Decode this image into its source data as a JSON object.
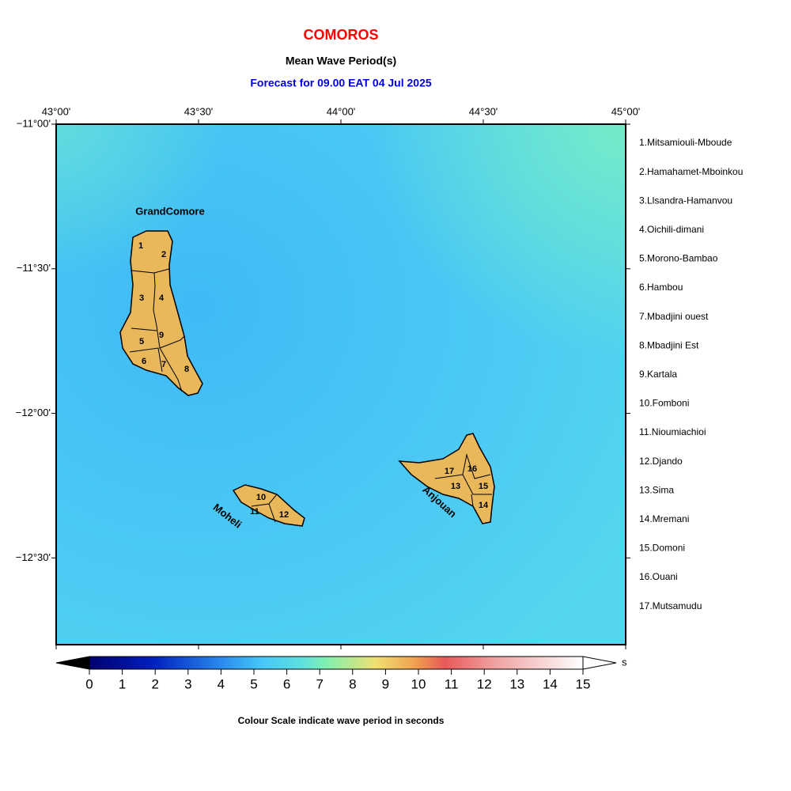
{
  "header": {
    "title": "COMOROS",
    "subtitle": "Mean Wave Period(s)",
    "forecast": "Forecast for  09.00 EAT 04 Jul 2025"
  },
  "map": {
    "xlim": [
      43,
      45
    ],
    "ylim": [
      -12.8,
      -11
    ],
    "lon_ticks": [
      {
        "value": 43,
        "label": "43°00'"
      },
      {
        "value": 43.5,
        "label": "43°30'"
      },
      {
        "value": 44,
        "label": "44°00'"
      },
      {
        "value": 44.5,
        "label": "44°30'"
      },
      {
        "value": 45,
        "label": "45°00'"
      }
    ],
    "lat_ticks": [
      {
        "value": -11,
        "label": "−11°00'"
      },
      {
        "value": -11.5,
        "label": "−11°30'"
      },
      {
        "value": -12,
        "label": "−12°00'"
      },
      {
        "value": -12.5,
        "label": "−12°30'"
      }
    ],
    "islands": [
      "GrandComore",
      "Moheli",
      "Anjouan"
    ],
    "region_numbers": [
      "1",
      "2",
      "3",
      "4",
      "5",
      "6",
      "7",
      "8",
      "9",
      "10",
      "11",
      "12",
      "13",
      "14",
      "15",
      "16",
      "17"
    ]
  },
  "legend": [
    "1.Mitsamiouli-Mboude",
    "2.Hamahamet-Mboinkou",
    "3.Llsandra-Hamanvou",
    "4.Oichili-dimani",
    "5.Morono-Bambao",
    "6.Hambou",
    "7.Mbadjini ouest",
    "8.Mbadjini Est",
    "9.Kartala",
    "10.Fomboni",
    "11.Nioumiachioi",
    "12.Djando",
    "13.Sima",
    "14.Mremani",
    "15.Domoni",
    "16.Ouani",
    "17.Mutsamudu"
  ],
  "colorbar": {
    "ticks": [
      0,
      1,
      2,
      3,
      4,
      5,
      6,
      7,
      8,
      9,
      10,
      11,
      12,
      13,
      14,
      15
    ],
    "unit": "s",
    "caption": "Colour Scale indicate wave period in seconds"
  }
}
